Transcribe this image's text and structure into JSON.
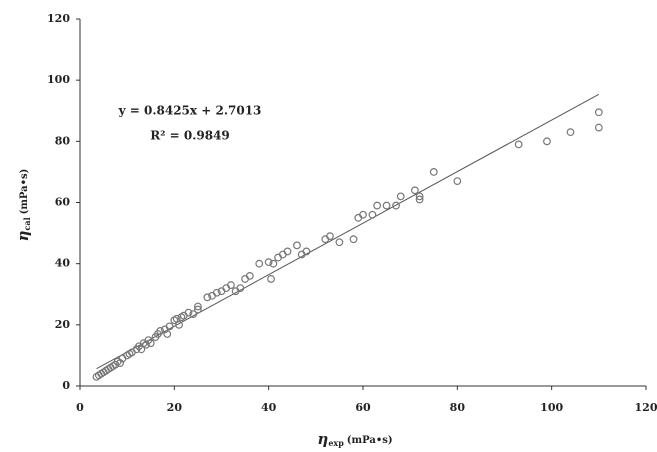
{
  "chart_data": {
    "type": "scatter",
    "x_label": {
      "symbol": "η",
      "subscript": "exp",
      "unit": "(mPa•s)"
    },
    "y_label": {
      "symbol": "η",
      "subscript": "cal",
      "unit": "(mPa•s)"
    },
    "annotations": [
      "y = 0.8425x + 2.7013",
      "R² = 0.9849"
    ],
    "trendline": {
      "slope": 0.8425,
      "intercept": 2.7013,
      "x_range": [
        3.5,
        110
      ],
      "color": "#555555"
    },
    "xlim": [
      0,
      120
    ],
    "xticks": [
      0,
      20,
      40,
      60,
      80,
      100,
      120
    ],
    "ylim": [
      0,
      120
    ],
    "yticks": [
      0,
      20,
      40,
      60,
      80,
      100,
      120
    ],
    "grid": false,
    "color": "#777777",
    "x": [
      3.5,
      4,
      4.5,
      5,
      5.5,
      6,
      6.5,
      7,
      7.5,
      8,
      8.5,
      9,
      10,
      10.5,
      11,
      12,
      12.5,
      13,
      13.5,
      14,
      14.5,
      15,
      16,
      16.5,
      17,
      18,
      18.5,
      19,
      20,
      20.5,
      21,
      21.5,
      22,
      23,
      24,
      25,
      25,
      27,
      28,
      29,
      30,
      31,
      32,
      33,
      34,
      35,
      36,
      38,
      40,
      40.5,
      41,
      42,
      43,
      44,
      46,
      47,
      48,
      52,
      53,
      55,
      58,
      59,
      60,
      62,
      63,
      65,
      67,
      68,
      71,
      72,
      72,
      75,
      80,
      93,
      99,
      104,
      110,
      110
    ],
    "values": [
      3,
      3.5,
      4,
      4.5,
      5,
      5.5,
      6,
      6.5,
      7,
      8,
      7.5,
      9,
      10,
      10.5,
      11,
      12,
      13,
      12,
      14,
      13.5,
      15,
      14,
      16,
      17,
      18,
      18.5,
      17,
      19.5,
      21.5,
      22,
      20,
      22.5,
      23,
      24,
      23.5,
      25,
      26,
      29,
      29.5,
      30.5,
      31,
      32,
      33,
      31,
      32,
      35,
      36,
      40,
      40.5,
      35,
      40,
      42,
      43,
      44,
      46,
      43,
      44,
      48,
      49,
      47,
      48,
      55,
      56,
      56,
      59,
      59,
      59,
      62,
      64,
      62,
      61,
      70,
      67,
      79,
      80,
      83,
      84.5,
      89.5
    ]
  }
}
